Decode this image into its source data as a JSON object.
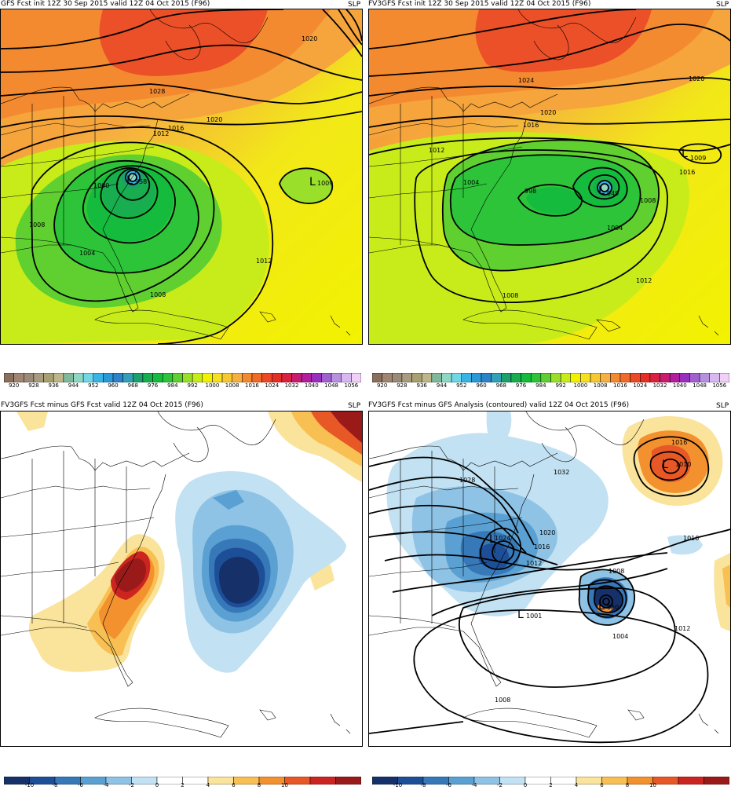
{
  "panels": {
    "tl": {
      "title": "GFS Fcst init 12Z 30 Sep 2015 valid 12Z 04 Oct 2015 (F96)",
      "var": "SLP",
      "labels": [
        "1020",
        "1028",
        "1020",
        "1016",
        "1012",
        "1000",
        "1008",
        "1004",
        "1008",
        "1012",
        "1009",
        "958"
      ],
      "low_letters": [
        "L",
        "L"
      ]
    },
    "tr": {
      "title": "FV3GFS Fcst init 12Z 30 Sep 2015 valid 12Z 04 Oct 2015 (F96)",
      "var": "SLP",
      "labels": [
        "1020",
        "1024",
        "1020",
        "1016",
        "1012",
        "1004",
        "998",
        "1008",
        "1004",
        "1012",
        "1008",
        "1009",
        "949",
        "1016"
      ],
      "low_letters": [
        "L",
        "L"
      ]
    },
    "bl": {
      "title": "FV3GFS Fcst minus GFS Fcst valid 12Z 04 Oct 2015 (F96)",
      "var": "SLP"
    },
    "br": {
      "title": "FV3GFS Fcst minus GFS Analysis (contoured) valid 12Z 04 Oct 2015 (F96)",
      "var": "SLP",
      "labels": [
        "1028",
        "1032",
        "1016",
        "1010",
        "1020",
        "1024",
        "1016",
        "1012",
        "1016",
        "1008",
        "950",
        "1001",
        "1004",
        "1012",
        "1008"
      ],
      "low_letters": [
        "L",
        "L",
        "L",
        "L"
      ]
    }
  },
  "colorbars": {
    "slp": {
      "colors": [
        "#8a6f5c",
        "#a08570",
        "#9b8a78",
        "#a89c80",
        "#a8a070",
        "#bdb68d",
        "#7fb89a",
        "#8fd7c5",
        "#6fd7e5",
        "#39b3e6",
        "#2b98d8",
        "#2d82c8",
        "#33a0b8",
        "#1ca06c",
        "#18ad4e",
        "#14bb3c",
        "#2dc43a",
        "#5fd030",
        "#9ae02a",
        "#c8ec1a",
        "#f2f200",
        "#f7e020",
        "#f8c830",
        "#f6b040",
        "#f48a30",
        "#f06a2a",
        "#ec4a26",
        "#e43024",
        "#d82240",
        "#c81c70",
        "#b0209c",
        "#9a2ec0",
        "#a060d0",
        "#b890e0",
        "#d8b8f0",
        "#f0d0f8"
      ],
      "labels": [
        "920",
        "928",
        "936",
        "944",
        "952",
        "960",
        "968",
        "976",
        "984",
        "992",
        "1000",
        "1008",
        "1016",
        "1024",
        "1032",
        "1040",
        "1048",
        "1056"
      ]
    },
    "diff": {
      "colors": [
        "#16306a",
        "#1d4f98",
        "#3778b8",
        "#5aa0d2",
        "#8ec3e6",
        "#c2e1f2",
        "#ffffff",
        "#ffffff",
        "#fae39a",
        "#f8bf52",
        "#f3912e",
        "#e85826",
        "#cc2420",
        "#9a1a1a"
      ],
      "labels": [
        "-10",
        "-8",
        "-6",
        "-4",
        "-2",
        "0",
        "2",
        "4",
        "6",
        "8",
        "10"
      ]
    }
  }
}
